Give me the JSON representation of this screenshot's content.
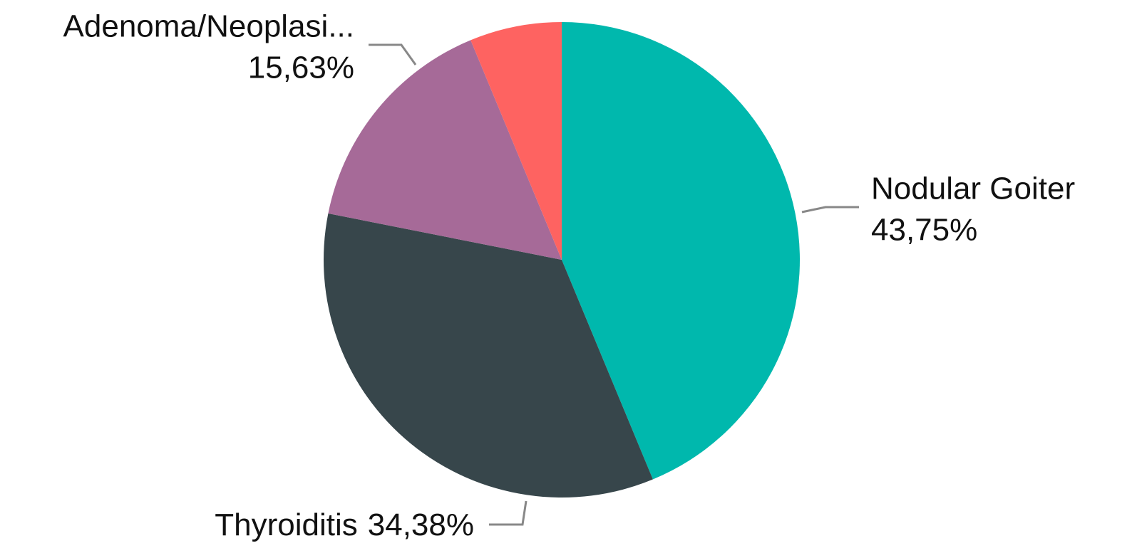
{
  "chart_data": {
    "type": "pie",
    "categories": [
      "Nodular Goiter",
      "Thyroiditis",
      "Adenoma/Neoplasi...",
      null
    ],
    "values": [
      43.75,
      34.38,
      15.63,
      6.25
    ],
    "value_labels": [
      "43,75%",
      "34,38%",
      "15,63%",
      null
    ],
    "colors": [
      "#00b8ad",
      "#37464b",
      "#a66a98",
      "#fe6361"
    ]
  }
}
